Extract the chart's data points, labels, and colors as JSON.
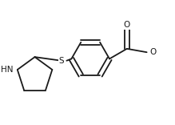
{
  "bg_color": "#ffffff",
  "line_color": "#1a1a1a",
  "line_width": 1.3,
  "font_size": 7.5,
  "figsize": [
    2.19,
    1.56
  ],
  "dpi": 100,
  "xlim": [
    -0.5,
    3.8
  ],
  "ylim": [
    -1.3,
    1.5
  ]
}
